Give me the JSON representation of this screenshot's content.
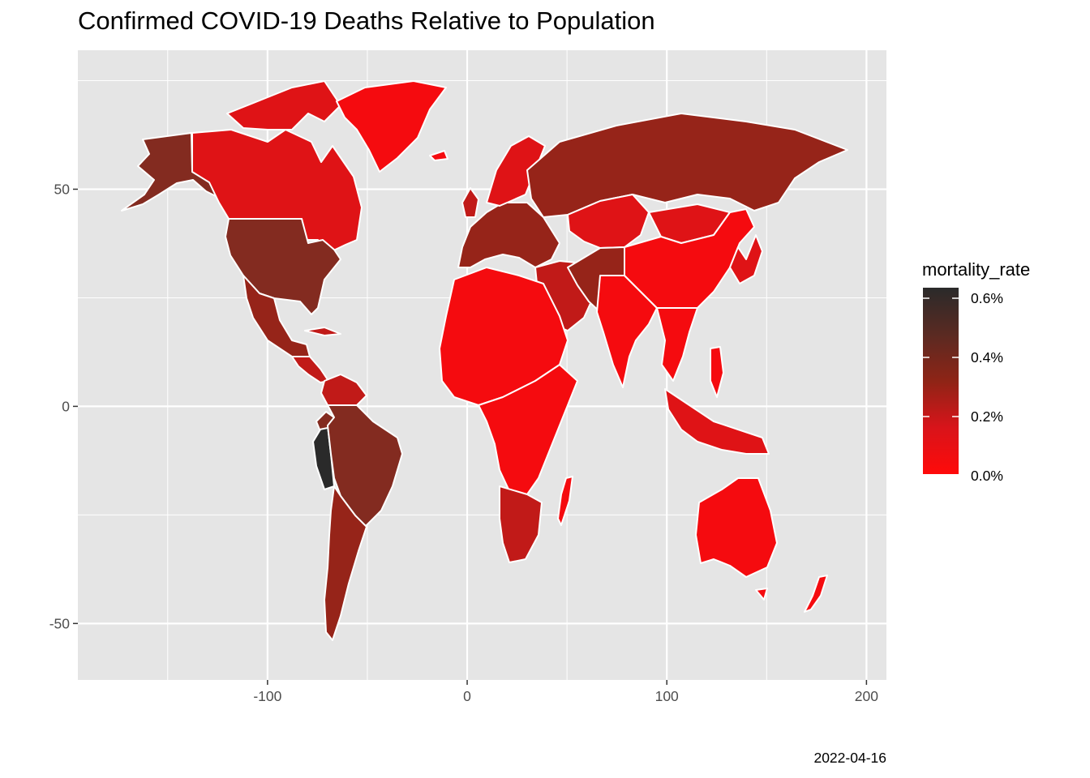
{
  "title": "Confirmed COVID-19 Deaths Relative to Population",
  "caption": "2022-04-16",
  "x_axis": {
    "ticks": [
      -100,
      0,
      100,
      200
    ],
    "minor_ticks": [
      -150,
      -50,
      50,
      150
    ],
    "range": [
      -195,
      210
    ]
  },
  "y_axis": {
    "ticks": [
      -50,
      0,
      50
    ],
    "minor_ticks": [
      -25,
      25,
      75
    ],
    "range": [
      -63,
      82
    ]
  },
  "legend": {
    "title": "mortality_rate",
    "labels": [
      "0.6%",
      "0.4%",
      "0.2%",
      "0.0%"
    ],
    "gradient": [
      "#2a2a2a",
      "#5a2a22",
      "#8e2416",
      "#d8141a",
      "#ff0a0a"
    ]
  },
  "colors": {
    "panel": "#e5e5e5",
    "grid": "#ffffff",
    "very_low": "#f50b0f",
    "low": "#df1316",
    "medium_low": "#c11a18",
    "medium": "#962419",
    "medium_high": "#832b20",
    "high": "#6b2a23",
    "highest": "#2a2a2a"
  },
  "regions": [
    {
      "name": "Alaska",
      "rate": "medium_high"
    },
    {
      "name": "Canada",
      "rate": "low"
    },
    {
      "name": "Greenland",
      "rate": "very_low"
    },
    {
      "name": "United States",
      "rate": "medium_high"
    },
    {
      "name": "Mexico",
      "rate": "medium"
    },
    {
      "name": "Central America",
      "rate": "medium_low"
    },
    {
      "name": "Colombia/Venezuela",
      "rate": "medium_low"
    },
    {
      "name": "Peru",
      "rate": "highest"
    },
    {
      "name": "Brazil",
      "rate": "medium_high"
    },
    {
      "name": "Argentina/Chile",
      "rate": "medium"
    },
    {
      "name": "Europe",
      "rate": "medium"
    },
    {
      "name": "Scandinavia",
      "rate": "low"
    },
    {
      "name": "Russia",
      "rate": "medium"
    },
    {
      "name": "Kazakhstan/Central Asia",
      "rate": "low"
    },
    {
      "name": "Middle East",
      "rate": "medium_low"
    },
    {
      "name": "North Africa",
      "rate": "very_low"
    },
    {
      "name": "Sub-Saharan Africa",
      "rate": "very_low"
    },
    {
      "name": "Southern Africa",
      "rate": "medium_low"
    },
    {
      "name": "Madagascar",
      "rate": "very_low"
    },
    {
      "name": "India",
      "rate": "very_low"
    },
    {
      "name": "China",
      "rate": "very_low"
    },
    {
      "name": "Mongolia",
      "rate": "low"
    },
    {
      "name": "Southeast Asia",
      "rate": "very_low"
    },
    {
      "name": "Indonesia",
      "rate": "low"
    },
    {
      "name": "Japan",
      "rate": "low"
    },
    {
      "name": "Australia",
      "rate": "very_low"
    },
    {
      "name": "New Zealand",
      "rate": "very_low"
    }
  ]
}
